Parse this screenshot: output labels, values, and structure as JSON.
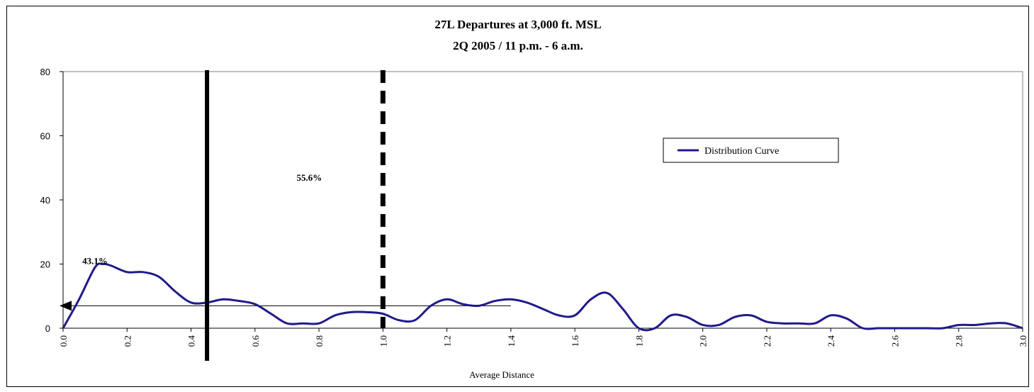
{
  "chart_data": {
    "type": "line",
    "title": "27L Departures at 3,000 ft. MSL",
    "subtitle": "2Q 2005 / 11 p.m. - 6 a.m.",
    "xlabel": "Average Distance",
    "ylabel": "",
    "xlim": [
      0,
      3
    ],
    "ylim": [
      0,
      80
    ],
    "x_ticks": [
      "0.0",
      "0.2",
      "0.4",
      "0.6",
      "0.8",
      "1.0",
      "1.2",
      "1.4",
      "1.6",
      "1.8",
      "2.0",
      "2.2",
      "2.4",
      "2.6",
      "2.8",
      "3.0"
    ],
    "y_ticks": [
      "0",
      "20",
      "40",
      "60",
      "80"
    ],
    "grid": false,
    "legend_position": "right",
    "series": [
      {
        "name": "Distribution Curve",
        "color": "#1f1a8c",
        "x": [
          0.0,
          0.05,
          0.1,
          0.125,
          0.15,
          0.2,
          0.25,
          0.3,
          0.35,
          0.4,
          0.45,
          0.5,
          0.55,
          0.6,
          0.65,
          0.7,
          0.75,
          0.8,
          0.85,
          0.9,
          0.95,
          1.0,
          1.05,
          1.1,
          1.15,
          1.2,
          1.25,
          1.3,
          1.35,
          1.4,
          1.45,
          1.5,
          1.55,
          1.6,
          1.65,
          1.7,
          1.75,
          1.8,
          1.85,
          1.9,
          1.95,
          2.0,
          2.05,
          2.1,
          2.15,
          2.2,
          2.25,
          2.3,
          2.35,
          2.4,
          2.45,
          2.5,
          2.55,
          2.6,
          2.65,
          2.7,
          2.75,
          2.8,
          2.85,
          2.9,
          2.95,
          3.0
        ],
        "values": [
          0,
          9,
          19,
          20,
          19.5,
          17.5,
          17.5,
          16,
          11.5,
          8,
          8,
          9,
          8.5,
          7.5,
          4.5,
          1.5,
          1.5,
          1.5,
          4,
          5,
          5,
          4.5,
          2.5,
          2.5,
          7,
          9,
          7.5,
          7,
          8.5,
          9,
          8,
          6,
          4,
          4,
          9,
          11,
          6,
          0,
          0,
          4,
          3.5,
          1,
          1,
          3.5,
          4,
          2,
          1.5,
          1.5,
          1.5,
          4,
          3,
          0,
          0,
          0,
          0,
          0,
          0,
          1,
          1,
          1.5,
          1.5,
          0
        ]
      }
    ],
    "reference_lines": [
      {
        "x": 0.45,
        "style": "solid"
      },
      {
        "x": 1.0,
        "style": "dashed"
      }
    ],
    "horizontal_line": {
      "y": 7,
      "x_end": 1.4,
      "arrow": "left"
    },
    "annotations": [
      {
        "text": "43.1%",
        "x": 0.06,
        "y": 20
      },
      {
        "text": "55.6%",
        "x": 0.73,
        "y": 46
      }
    ]
  }
}
